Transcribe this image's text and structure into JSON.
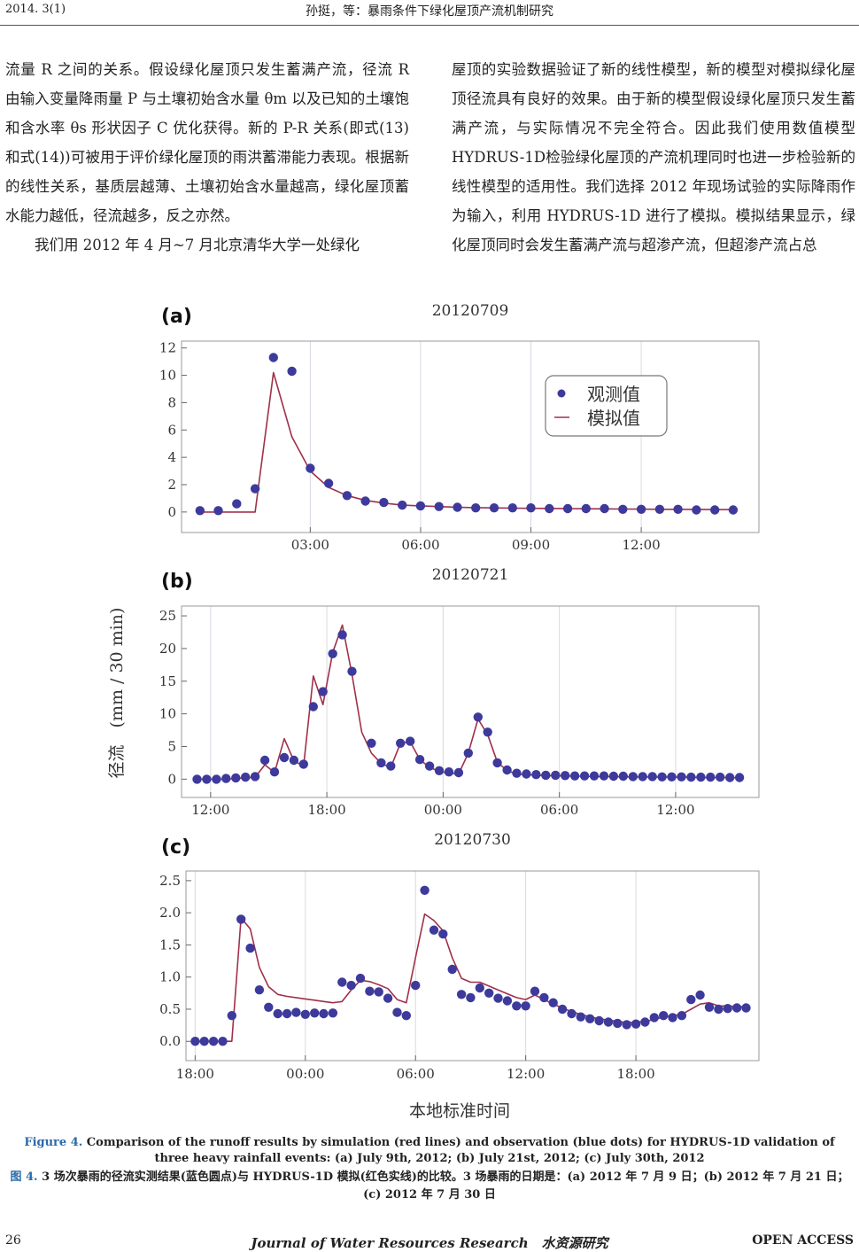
{
  "header": {
    "issue": "2014. 3(1)",
    "running_title": "孙挺，等：暴雨条件下绿化屋顶产流机制研究"
  },
  "body_text": {
    "left_p1": "流量 R 之间的关系。假设绿化屋顶只发生蓄满产流，径流 R 由输入变量降雨量 P 与土壤初始含水量 θm 以及已知的土壤饱和含水率 θs 形状因子 C 优化获得。新的 P-R 关系(即式(13)和式(14))可被用于评价绿化屋顶的雨洪蓄滞能力表现。根据新的线性关系，基质层越薄、土壤初始含水量越高，绿化屋顶蓄水能力越低，径流越多，反之亦然。",
    "left_p2": "我们用 2012 年 4 月~7 月北京清华大学一处绿化",
    "right_p1": "屋顶的实验数据验证了新的线性模型，新的模型对模拟绿化屋顶径流具有良好的效果。由于新的模型假设绿化屋顶只发生蓄满产流，与实际情况不完全符合。因此我们使用数值模型HYDRUS-1D检验绿化屋顶的产流机理同时也进一步检验新的线性模型的适用性。我们选择 2012 年现场试验的实际降雨作为输入，利用 HYDRUS-1D 进行了模拟。模拟结果显示，绿化屋顶同时会发生蓄满产流与超渗产流，但超渗产流占总"
  },
  "figure": {
    "ylabel": "径流　(mm / 30 min)",
    "xlabel": "本地标准时间",
    "legend": {
      "observed": "观测值",
      "simulated": "模拟值"
    },
    "colors": {
      "observed": "#3d3a9c",
      "simulated": "#a0304a",
      "grid": "#d8d8e4",
      "frame": "#999999"
    }
  },
  "chart_data": [
    {
      "type": "line",
      "panel": "(a)",
      "title": "20120709",
      "x_unit": "hours",
      "xlim": [
        -0.5,
        15.2
      ],
      "ylim": [
        -1.5,
        12.5
      ],
      "yticks": [
        0,
        2,
        4,
        6,
        8,
        10,
        12
      ],
      "xticks": [
        3,
        6,
        9,
        12
      ],
      "xtick_labels": [
        "03:00",
        "06:00",
        "09:00",
        "12:00"
      ],
      "legend": true,
      "legend_position": "top-right",
      "series": [
        {
          "role": "observed",
          "x": [
            0,
            0.5,
            1,
            1.5,
            2,
            2.5,
            3,
            3.5,
            4,
            4.5,
            5,
            5.5,
            6,
            6.5,
            7,
            7.5,
            8,
            8.5,
            9,
            9.5,
            10,
            10.5,
            11,
            11.5,
            12,
            12.5,
            13,
            13.5,
            14,
            14.5
          ],
          "y": [
            0.1,
            0.1,
            0.6,
            1.7,
            11.3,
            10.3,
            3.2,
            2.1,
            1.2,
            0.8,
            0.7,
            0.5,
            0.45,
            0.4,
            0.35,
            0.3,
            0.3,
            0.3,
            0.3,
            0.25,
            0.25,
            0.25,
            0.25,
            0.2,
            0.2,
            0.2,
            0.2,
            0.15,
            0.15,
            0.15
          ]
        },
        {
          "role": "simulated",
          "x": [
            0,
            0.5,
            1,
            1.5,
            2,
            2.5,
            3,
            3.5,
            4,
            4.5,
            5,
            5.5,
            6,
            6.5,
            7,
            7.5,
            8,
            8.5,
            9,
            9.5,
            10,
            10.5,
            11,
            11.5,
            12,
            12.5,
            13,
            13.5,
            14,
            14.5
          ],
          "y": [
            0,
            0,
            0,
            0,
            10.2,
            5.5,
            3.0,
            1.8,
            1.2,
            0.85,
            0.65,
            0.5,
            0.45,
            0.4,
            0.35,
            0.32,
            0.3,
            0.28,
            0.27,
            0.26,
            0.25,
            0.24,
            0.23,
            0.22,
            0.21,
            0.2,
            0.2,
            0.19,
            0.18,
            0.17
          ]
        }
      ]
    },
    {
      "type": "line",
      "panel": "(b)",
      "title": "20120721",
      "x_unit": "hours",
      "xlim": [
        10.5,
        40.3
      ],
      "ylim": [
        -2.8,
        26.5
      ],
      "yticks": [
        0,
        5,
        10,
        15,
        20,
        25
      ],
      "xticks": [
        12,
        18,
        24,
        30,
        36
      ],
      "xtick_labels": [
        "12:00",
        "18:00",
        "00:00",
        "06:00",
        "12:00"
      ],
      "series": [
        {
          "role": "observed",
          "x": [
            11.3,
            11.8,
            12.3,
            12.8,
            13.3,
            13.8,
            14.3,
            14.8,
            15.3,
            15.8,
            16.3,
            16.8,
            17.3,
            17.8,
            18.3,
            18.8,
            19.3,
            19.8,
            20.3,
            20.8,
            21.3,
            21.8,
            22.3,
            22.8,
            23.3,
            23.8,
            24.3,
            24.8,
            25.3,
            25.8,
            26.3,
            26.8,
            27.3,
            27.8,
            28.3,
            28.8,
            29.3,
            29.8,
            30.3,
            30.8,
            31.3,
            31.8,
            32.3,
            32.8,
            33.3,
            33.8,
            34.3,
            34.8,
            35.3,
            35.8,
            36.3,
            36.8,
            37.3,
            37.8,
            38.3,
            38.8,
            39.3
          ],
          "y": [
            0,
            0,
            0,
            0.1,
            0.2,
            0.3,
            0.4,
            2.9,
            1.1,
            3.3,
            2.9,
            2.3,
            11.1,
            13.4,
            19.2,
            22.1,
            16.5,
            null,
            5.5,
            2.5,
            2.0,
            5.5,
            5.8,
            3.0,
            2.0,
            1.3,
            1.1,
            1.0,
            4.0,
            9.5,
            7.2,
            2.5,
            1.4,
            0.9,
            0.8,
            0.7,
            0.6,
            0.6,
            0.55,
            0.5,
            0.5,
            0.5,
            0.5,
            0.45,
            0.45,
            0.4,
            0.4,
            0.4,
            0.35,
            0.35,
            0.35,
            0.3,
            0.3,
            0.3,
            0.3,
            0.25,
            0.25
          ]
        },
        {
          "role": "simulated",
          "x": [
            11.3,
            11.8,
            12.3,
            12.8,
            13.3,
            13.8,
            14.3,
            14.8,
            15.3,
            15.8,
            16.3,
            16.8,
            17.3,
            17.8,
            18.3,
            18.8,
            19.3,
            19.8,
            20.3,
            20.8,
            21.3,
            21.8,
            22.3,
            22.8,
            23.3,
            23.8,
            24.3,
            24.8,
            25.3,
            25.8,
            26.3,
            26.8,
            27.3,
            27.8,
            28.3,
            28.8,
            29.3,
            29.8,
            30.3,
            30.8,
            31.3,
            31.8,
            32.3,
            32.8,
            33.3,
            33.8,
            34.3,
            34.8,
            35.3,
            35.8,
            36.3,
            36.8,
            37.3,
            37.8,
            38.3,
            38.8,
            39.3
          ],
          "y": [
            0,
            0,
            0,
            0,
            0.1,
            0.2,
            0.3,
            2.2,
            1.0,
            6.2,
            2.8,
            2.0,
            15.8,
            11.4,
            19.4,
            23.6,
            16.0,
            7.2,
            4.0,
            2.4,
            1.8,
            5.5,
            5.7,
            3.0,
            1.8,
            1.2,
            0.9,
            0.8,
            4.0,
            9.2,
            6.8,
            2.6,
            1.3,
            0.8,
            0.7,
            0.6,
            0.55,
            0.5,
            0.5,
            0.45,
            0.45,
            0.4,
            0.4,
            0.4,
            0.35,
            0.35,
            0.35,
            0.3,
            0.3,
            0.3,
            0.3,
            0.3,
            0.25,
            0.25,
            0.25,
            0.25,
            0.2
          ]
        }
      ]
    },
    {
      "type": "line",
      "panel": "(c)",
      "title": "20120730",
      "x_unit": "hours",
      "xlim": [
        17.5,
        48.7
      ],
      "ylim": [
        -0.3,
        2.65
      ],
      "yticks": [
        0.0,
        0.5,
        1.0,
        1.5,
        2.0,
        2.5
      ],
      "ytick_labels": [
        "0.0",
        "0.5",
        "1.0",
        "1.5",
        "2.0",
        "2.5"
      ],
      "xticks": [
        18,
        24,
        30,
        36,
        42
      ],
      "xtick_labels": [
        "18:00",
        "00:00",
        "06:00",
        "12:00",
        "18:00"
      ],
      "series": [
        {
          "role": "observed",
          "x": [
            18,
            18.5,
            19,
            19.5,
            20,
            20.5,
            21,
            21.5,
            22,
            22.5,
            23,
            23.5,
            24,
            24.5,
            25,
            25.5,
            26,
            26.5,
            27,
            27.5,
            28,
            28.5,
            29,
            29.5,
            30,
            30.5,
            31,
            31.5,
            32,
            32.5,
            33,
            33.5,
            34,
            34.5,
            35,
            35.5,
            36,
            36.5,
            37,
            37.5,
            38,
            38.5,
            39,
            39.5,
            40,
            40.5,
            41,
            41.5,
            42,
            42.5,
            43,
            43.5,
            44,
            44.5,
            45,
            45.5,
            46,
            46.5,
            47,
            47.5,
            48
          ],
          "y": [
            0,
            0,
            0,
            0,
            0.4,
            1.9,
            1.45,
            0.8,
            0.53,
            0.43,
            0.43,
            0.45,
            0.42,
            0.44,
            0.43,
            0.44,
            0.92,
            0.87,
            0.98,
            0.78,
            0.77,
            0.67,
            0.45,
            0.4,
            0.87,
            2.35,
            1.73,
            1.67,
            1.12,
            0.73,
            0.68,
            0.83,
            0.75,
            0.67,
            0.63,
            0.55,
            0.55,
            0.78,
            0.68,
            0.6,
            0.5,
            0.43,
            0.38,
            0.35,
            0.32,
            0.3,
            0.28,
            0.26,
            0.27,
            0.3,
            0.37,
            0.4,
            0.37,
            0.4,
            0.65,
            0.72,
            0.53,
            0.5,
            0.51,
            0.52,
            0.52
          ]
        },
        {
          "role": "simulated",
          "x": [
            18,
            18.5,
            19,
            19.5,
            20,
            20.5,
            21,
            21.5,
            22,
            22.5,
            23,
            23.5,
            24,
            24.5,
            25,
            25.5,
            26,
            26.5,
            27,
            27.5,
            28,
            28.5,
            29,
            29.5,
            30,
            30.5,
            31,
            31.5,
            32,
            32.5,
            33,
            33.5,
            34,
            34.5,
            35,
            35.5,
            36,
            36.5,
            37,
            37.5,
            38,
            38.5,
            39,
            39.5,
            40,
            40.5,
            41,
            41.5,
            42,
            42.5,
            43,
            43.5,
            44,
            44.5,
            45,
            45.5,
            46,
            46.5,
            47,
            47.5,
            48
          ],
          "y": [
            0,
            0,
            0,
            0,
            0,
            1.92,
            1.75,
            1.15,
            0.85,
            0.73,
            0.7,
            0.68,
            0.66,
            0.64,
            0.62,
            0.6,
            0.62,
            0.8,
            0.95,
            0.93,
            0.88,
            0.82,
            0.65,
            0.6,
            1.3,
            1.98,
            1.88,
            1.72,
            1.3,
            0.98,
            0.92,
            0.92,
            0.86,
            0.8,
            0.74,
            0.68,
            0.65,
            0.72,
            0.65,
            0.58,
            0.52,
            0.46,
            0.42,
            0.38,
            0.35,
            0.33,
            0.31,
            0.29,
            0.3,
            0.31,
            0.34,
            0.38,
            0.4,
            0.42,
            0.5,
            0.58,
            0.6,
            0.55,
            0.55,
            0.54,
            0.54
          ]
        }
      ]
    }
  ],
  "caption": {
    "en_label": "Figure 4.",
    "en_text": " Comparison of the runoff results by simulation (red lines) and observation (blue dots) for HYDRUS-1D validation of three heavy rainfall events: (a) July 9th, 2012; (b) July 21st, 2012; (c) July 30th, 2012",
    "cn_label": "图 4.",
    "cn_text": " 3 场次暴雨的径流实测结果(蓝色圆点)与 HYDRUS-1D 模拟(红色实线)的比较。3 场暴雨的日期是：(a) 2012 年 7 月 9 日；(b) 2012 年 7 月 21 日；(c) 2012 年 7 月 30 日"
  },
  "footer": {
    "page": "26",
    "journal": "Journal of Water Resources Research　水资源研究",
    "access": "OPEN ACCESS"
  }
}
